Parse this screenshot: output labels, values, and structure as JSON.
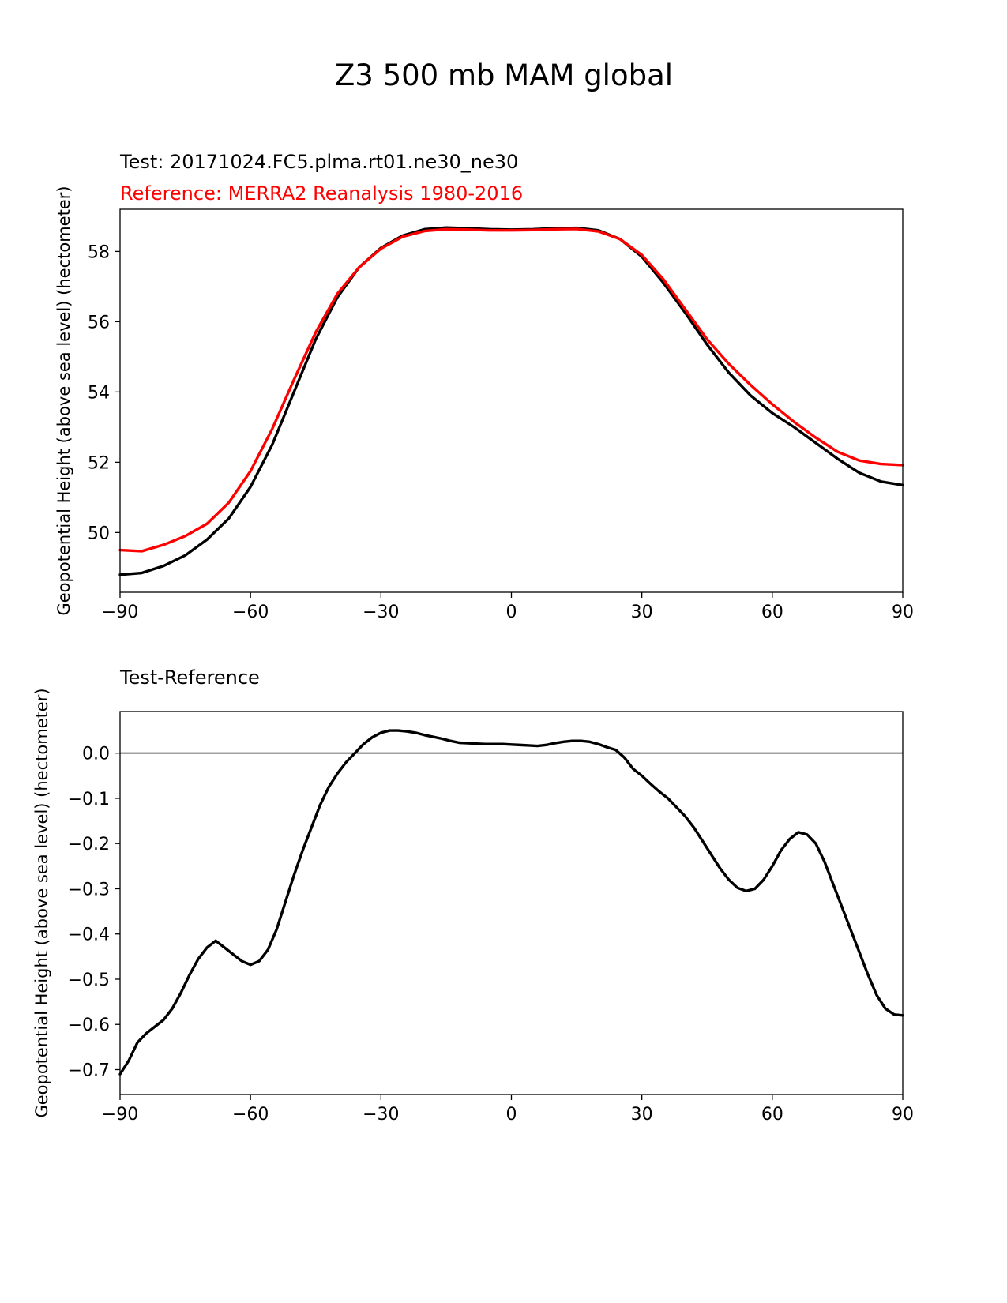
{
  "suptitle": "Z3 500 mb MAM global",
  "chart_data": [
    {
      "type": "line",
      "title_test": "Test: 20171024.FC5.plma.rt01.ne30_ne30",
      "title_reference": "Reference: MERRA2 Reanalysis 1980-2016",
      "xlabel": "",
      "ylabel": "Geopotential Height (above sea level) (hectometer)",
      "xlim": [
        -90,
        90
      ],
      "ylim": [
        48.3,
        59.2
      ],
      "xticks": [
        -90,
        -60,
        -30,
        0,
        30,
        60,
        90
      ],
      "xtick_labels": [
        "−90",
        "−60",
        "−30",
        "0",
        "30",
        "60",
        "90"
      ],
      "yticks": [
        50,
        52,
        54,
        56,
        58
      ],
      "ytick_labels": [
        "50",
        "52",
        "54",
        "56",
        "58"
      ],
      "series": [
        {
          "name": "Test",
          "color": "#000000",
          "x": [
            -90,
            -85,
            -80,
            -75,
            -70,
            -65,
            -60,
            -55,
            -50,
            -45,
            -40,
            -35,
            -30,
            -25,
            -20,
            -15,
            -10,
            -5,
            0,
            5,
            10,
            15,
            20,
            25,
            30,
            35,
            40,
            45,
            50,
            55,
            60,
            65,
            70,
            75,
            80,
            85,
            90
          ],
          "values": [
            48.8,
            48.85,
            49.05,
            49.35,
            49.8,
            50.4,
            51.3,
            52.5,
            54.0,
            55.5,
            56.7,
            57.55,
            58.1,
            58.45,
            58.63,
            58.68,
            58.66,
            58.63,
            58.62,
            58.63,
            58.66,
            58.67,
            58.6,
            58.35,
            57.85,
            57.1,
            56.25,
            55.35,
            54.55,
            53.9,
            53.4,
            53.0,
            52.55,
            52.1,
            51.7,
            51.45,
            51.35
          ]
        },
        {
          "name": "Reference",
          "color": "#ff0000",
          "x": [
            -90,
            -85,
            -80,
            -75,
            -70,
            -65,
            -60,
            -55,
            -50,
            -45,
            -40,
            -35,
            -30,
            -25,
            -20,
            -15,
            -10,
            -5,
            0,
            5,
            10,
            15,
            20,
            25,
            30,
            35,
            40,
            45,
            50,
            55,
            60,
            65,
            70,
            75,
            80,
            85,
            90
          ],
          "values": [
            49.5,
            49.47,
            49.65,
            49.9,
            50.25,
            50.85,
            51.75,
            52.95,
            54.35,
            55.7,
            56.8,
            57.55,
            58.08,
            58.42,
            58.58,
            58.63,
            58.62,
            58.6,
            58.6,
            58.61,
            58.63,
            58.64,
            58.57,
            58.35,
            57.9,
            57.2,
            56.35,
            55.5,
            54.8,
            54.2,
            53.65,
            53.15,
            52.7,
            52.3,
            52.05,
            51.95,
            51.92
          ]
        }
      ]
    },
    {
      "type": "line",
      "title": "Test-Reference",
      "xlabel": "",
      "ylabel": "Geopotential Height (above sea level) (hectometer)",
      "xlim": [
        -90,
        90
      ],
      "ylim": [
        -0.755,
        0.092
      ],
      "xticks": [
        -90,
        -60,
        -30,
        0,
        30,
        60,
        90
      ],
      "xtick_labels": [
        "−90",
        "−60",
        "−30",
        "0",
        "30",
        "60",
        "90"
      ],
      "yticks": [
        0.0,
        -0.1,
        -0.2,
        -0.3,
        -0.4,
        -0.5,
        -0.6,
        -0.7
      ],
      "ytick_labels": [
        "0.0",
        "−0.1",
        "−0.2",
        "−0.3",
        "−0.4",
        "−0.5",
        "−0.6",
        "−0.7"
      ],
      "zero_line": 0.0,
      "zero_line_color": "#808080",
      "series": [
        {
          "name": "Test-Reference",
          "color": "#000000",
          "x": [
            -90,
            -88,
            -86,
            -84,
            -82,
            -80,
            -78,
            -76,
            -74,
            -72,
            -70,
            -68,
            -66,
            -64,
            -62,
            -60,
            -58,
            -56,
            -54,
            -52,
            -50,
            -48,
            -46,
            -44,
            -42,
            -40,
            -38,
            -36,
            -34,
            -32,
            -30,
            -28,
            -26,
            -24,
            -22,
            -20,
            -18,
            -16,
            -14,
            -12,
            -10,
            -8,
            -6,
            -4,
            -2,
            0,
            2,
            4,
            6,
            8,
            10,
            12,
            14,
            16,
            18,
            20,
            22,
            24,
            26,
            28,
            30,
            32,
            34,
            36,
            38,
            40,
            42,
            44,
            46,
            48,
            50,
            52,
            54,
            56,
            58,
            60,
            62,
            64,
            66,
            68,
            70,
            72,
            74,
            76,
            78,
            80,
            82,
            84,
            86,
            88,
            90
          ],
          "values": [
            -0.71,
            -0.68,
            -0.64,
            -0.62,
            -0.605,
            -0.59,
            -0.565,
            -0.53,
            -0.49,
            -0.455,
            -0.43,
            -0.415,
            -0.43,
            -0.445,
            -0.46,
            -0.468,
            -0.46,
            -0.435,
            -0.39,
            -0.33,
            -0.27,
            -0.215,
            -0.165,
            -0.115,
            -0.075,
            -0.045,
            -0.02,
            0.0,
            0.02,
            0.035,
            0.045,
            0.05,
            0.05,
            0.048,
            0.045,
            0.04,
            0.036,
            0.032,
            0.027,
            0.023,
            0.022,
            0.021,
            0.02,
            0.02,
            0.02,
            0.019,
            0.018,
            0.017,
            0.016,
            0.018,
            0.022,
            0.025,
            0.027,
            0.027,
            0.025,
            0.02,
            0.013,
            0.007,
            -0.01,
            -0.035,
            -0.05,
            -0.068,
            -0.085,
            -0.1,
            -0.12,
            -0.14,
            -0.165,
            -0.195,
            -0.225,
            -0.255,
            -0.28,
            -0.298,
            -0.305,
            -0.3,
            -0.28,
            -0.25,
            -0.215,
            -0.19,
            -0.175,
            -0.18,
            -0.2,
            -0.24,
            -0.29,
            -0.34,
            -0.39,
            -0.44,
            -0.49,
            -0.535,
            -0.565,
            -0.578,
            -0.58
          ]
        }
      ]
    }
  ]
}
